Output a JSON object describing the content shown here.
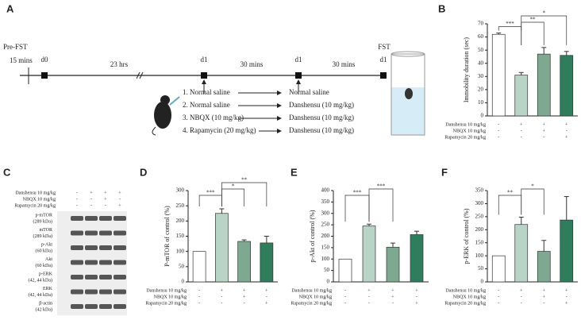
{
  "panels": [
    "A",
    "B",
    "C",
    "D",
    "E",
    "F"
  ],
  "timeline": {
    "pre": "Pre-FST",
    "pre_time": "15 mins",
    "days": [
      "d0",
      "d1",
      "d1",
      "d1"
    ],
    "gaps": [
      "23 hrs",
      "30 mins",
      "30 mins"
    ],
    "post": "FST",
    "treatments": [
      [
        "1. Normal saline",
        "Normal saline"
      ],
      [
        "2. Normal saline",
        "Danshensu (10 mg/kg)"
      ],
      [
        "3. NBQX (10 mg/kg)",
        "Danshensu (10 mg/kg)"
      ],
      [
        "4. Rapamycin (20 mg/kg)",
        "Danshensu (10 mg/kg)"
      ]
    ]
  },
  "blot": {
    "treatments": [
      {
        "name": "Danshensu 10 mg/kg",
        "signs": [
          "-",
          "+",
          "+",
          "+"
        ]
      },
      {
        "name": "NBQX 10 mg/kg",
        "signs": [
          "-",
          "-",
          "+",
          "-"
        ]
      },
      {
        "name": "Rapamycin 20 mg/kg",
        "signs": [
          "-",
          "-",
          "-",
          "+"
        ]
      }
    ],
    "bands": [
      [
        "p-mTOR",
        "(289 kDa)"
      ],
      [
        "mTOR",
        "(289 kDa)"
      ],
      [
        "p-Akt",
        "(60 kDa)"
      ],
      [
        "Akt",
        "(60 kDa)"
      ],
      [
        "p-ERK",
        "(42, 44 kDa)"
      ],
      [
        "ERK",
        "(42, 44 kDa)"
      ],
      [
        "β-actin",
        "(42 kDa)"
      ]
    ]
  },
  "chart_data": [
    {
      "type": "bar",
      "y_label": "Immobility duration (sec)",
      "ylim": [
        0,
        70
      ],
      "yticks": [
        0,
        10,
        20,
        30,
        40,
        50,
        60,
        70
      ],
      "values": [
        62,
        31,
        47,
        46
      ],
      "errors": [
        1,
        2,
        5,
        3
      ],
      "colors": [
        "#ffffff",
        "#b9d3c6",
        "#7fa890",
        "#2f7d5c"
      ],
      "treatments": [
        {
          "name": "Danshensu 10 mg/kg",
          "signs": [
            "-",
            "+",
            "+",
            "+"
          ]
        },
        {
          "name": "NBQX 10 mg/kg",
          "signs": [
            "-",
            "-",
            "+",
            "-"
          ]
        },
        {
          "name": "Rapamycin 20 mg/kg",
          "signs": [
            "-",
            "-",
            "-",
            "+"
          ]
        }
      ],
      "significance": [
        {
          "from": 0,
          "to": 1,
          "label": "***"
        },
        {
          "from": 1,
          "to": 2,
          "label": "**"
        },
        {
          "from": 1,
          "to": 3,
          "label": "*"
        }
      ]
    },
    {
      "type": "bar",
      "y_label": "P-mTOR of control (%)",
      "ylim": [
        0,
        300
      ],
      "yticks": [
        0,
        50,
        100,
        150,
        200,
        250,
        300
      ],
      "values": [
        100,
        225,
        133,
        128
      ],
      "errors": [
        0,
        15,
        5,
        22
      ],
      "colors": [
        "#ffffff",
        "#b9d3c6",
        "#7fa890",
        "#2f7d5c"
      ],
      "treatments": [
        {
          "name": "Danshensu 10 mg/kg",
          "signs": [
            "-",
            "+",
            "+",
            "+"
          ]
        },
        {
          "name": "NBQX 10 mg/kg",
          "signs": [
            "-",
            "-",
            "+",
            "-"
          ]
        },
        {
          "name": "Rapamycin 20 mg/kg",
          "signs": [
            "-",
            "-",
            "-",
            "+"
          ]
        }
      ],
      "significance": [
        {
          "from": 0,
          "to": 1,
          "label": "***"
        },
        {
          "from": 1,
          "to": 2,
          "label": "*"
        },
        {
          "from": 1,
          "to": 3,
          "label": "**"
        }
      ]
    },
    {
      "type": "bar",
      "y_label": "p-Akt of control (%)",
      "ylim": [
        0,
        400
      ],
      "yticks": [
        0,
        50,
        100,
        150,
        200,
        250,
        300,
        350,
        400
      ],
      "values": [
        100,
        245,
        152,
        207
      ],
      "errors": [
        0,
        8,
        18,
        15
      ],
      "colors": [
        "#ffffff",
        "#b9d3c6",
        "#7fa890",
        "#2f7d5c"
      ],
      "treatments": [
        {
          "name": "Danshensu 10 mg/kg",
          "signs": [
            "-",
            "+",
            "+",
            "+"
          ]
        },
        {
          "name": "NBQX 10 mg/kg",
          "signs": [
            "-",
            "-",
            "+",
            "-"
          ]
        },
        {
          "name": "Rapamycin 20 mg/kg",
          "signs": [
            "-",
            "-",
            "-",
            "+"
          ]
        }
      ],
      "significance": [
        {
          "from": 0,
          "to": 1,
          "label": "***"
        },
        {
          "from": 1,
          "to": 2,
          "label": "***"
        }
      ]
    },
    {
      "type": "bar",
      "y_label": "p-ERK of control (%)",
      "ylim": [
        0,
        350
      ],
      "yticks": [
        0,
        50,
        100,
        150,
        200,
        250,
        300,
        350
      ],
      "values": [
        100,
        220,
        117,
        237
      ],
      "errors": [
        0,
        28,
        42,
        90
      ],
      "colors": [
        "#ffffff",
        "#b9d3c6",
        "#7fa890",
        "#2f7d5c"
      ],
      "treatments": [
        {
          "name": "Danshensu 10 mg/kg",
          "signs": [
            "-",
            "+",
            "+",
            "+"
          ]
        },
        {
          "name": "NBQX 10 mg/kg",
          "signs": [
            "-",
            "-",
            "+",
            "-"
          ]
        },
        {
          "name": "Rapamycin 20 mg/kg",
          "signs": [
            "-",
            "-",
            "-",
            "+"
          ]
        }
      ],
      "significance": [
        {
          "from": 0,
          "to": 1,
          "label": "**"
        },
        {
          "from": 1,
          "to": 2,
          "label": "*"
        }
      ]
    }
  ]
}
